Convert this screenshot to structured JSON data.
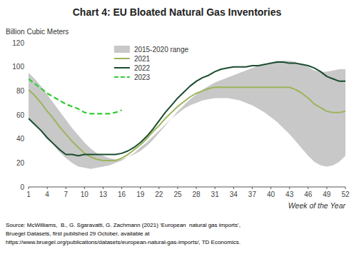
{
  "chart_data": {
    "type": "line",
    "title": "Chart 4: EU Bloated Natural Gas Inventories",
    "y_label": "Billion Cubic Meters",
    "x_label": "Week of the Year",
    "source": "Source: McWilliams,  B., G. Sgaravatti, G. Zachmann (2021) ‘European  natural gas imports’,\nBruegel Datasets, first published 29 October, available at\nhttps://www.bruegel.org/publications/datasets/european-natural-gas-imports/, TD Economics.",
    "xlim": [
      1,
      52
    ],
    "ylim": [
      0,
      120
    ],
    "yticks": [
      0,
      20,
      40,
      60,
      80,
      100,
      120
    ],
    "xticks": [
      1,
      4,
      7,
      10,
      13,
      16,
      19,
      22,
      25,
      28,
      31,
      34,
      37,
      40,
      43,
      46,
      49,
      52
    ],
    "grid": false,
    "legend": "top",
    "x": [
      1,
      2,
      3,
      4,
      5,
      6,
      7,
      8,
      9,
      10,
      11,
      12,
      13,
      14,
      15,
      16,
      17,
      18,
      19,
      20,
      21,
      22,
      23,
      24,
      25,
      26,
      27,
      28,
      29,
      30,
      31,
      32,
      33,
      34,
      35,
      36,
      37,
      38,
      39,
      40,
      41,
      42,
      43,
      44,
      45,
      46,
      47,
      48,
      49,
      50,
      51,
      52
    ],
    "series": [
      {
        "name": "2015-2020 range",
        "type": "range",
        "color": "#c8c8c8",
        "low": [
          57,
          52,
          46,
          40,
          35,
          29,
          24,
          20,
          17,
          16,
          15,
          16,
          17,
          18,
          20,
          22,
          25,
          28,
          33,
          37,
          42,
          47,
          52,
          57,
          61,
          65,
          68,
          70,
          72,
          73,
          74,
          74,
          74,
          73,
          72,
          70,
          68,
          65,
          62,
          58,
          54,
          49,
          44,
          38,
          32,
          26,
          21,
          18,
          17,
          18,
          21,
          26
        ],
        "high": [
          95,
          90,
          84,
          77,
          70,
          63,
          56,
          49,
          43,
          37,
          32,
          28,
          26,
          24,
          23,
          23,
          25,
          27,
          30,
          34,
          39,
          45,
          51,
          57,
          63,
          68,
          73,
          77,
          81,
          84,
          87,
          89,
          91,
          93,
          95,
          97,
          99,
          101,
          102,
          104,
          105,
          105,
          105,
          104,
          102,
          100,
          97,
          96,
          96,
          97,
          98,
          98
        ]
      },
      {
        "name": "2021",
        "type": "line",
        "color": "#9ab55a",
        "line_style": "solid",
        "values": [
          81,
          76,
          70,
          63,
          57,
          50,
          44,
          38,
          33,
          28,
          25,
          23,
          22,
          22,
          22,
          24,
          27,
          31,
          35,
          40,
          46,
          51,
          57,
          62,
          67,
          71,
          75,
          78,
          80,
          82,
          83,
          83,
          83,
          83,
          83,
          83,
          83,
          83,
          83,
          83,
          83,
          83,
          83,
          81,
          78,
          74,
          69,
          66,
          63,
          62,
          62,
          63
        ]
      },
      {
        "name": "2022",
        "type": "line",
        "color": "#1a4d2e",
        "line_style": "solid",
        "values": [
          57,
          52,
          47,
          41,
          36,
          31,
          27,
          27,
          26,
          27,
          27,
          27,
          27,
          27,
          27,
          28,
          30,
          33,
          37,
          42,
          48,
          55,
          62,
          68,
          74,
          79,
          84,
          88,
          91,
          93,
          96,
          98,
          99,
          100,
          100,
          100,
          101,
          101,
          102,
          103,
          104,
          104,
          103,
          103,
          102,
          101,
          99,
          96,
          92,
          90,
          88,
          88
        ]
      },
      {
        "name": "2023",
        "type": "line",
        "color": "#33cc33",
        "line_style": "dashed",
        "x": [
          1,
          2,
          3,
          4,
          5,
          6,
          7,
          8,
          9,
          10,
          11,
          12,
          13,
          14,
          15,
          16
        ],
        "values": [
          90,
          86,
          82,
          78,
          75,
          72,
          69,
          67,
          65,
          62,
          61,
          61,
          61,
          61,
          62,
          64
        ]
      }
    ]
  }
}
